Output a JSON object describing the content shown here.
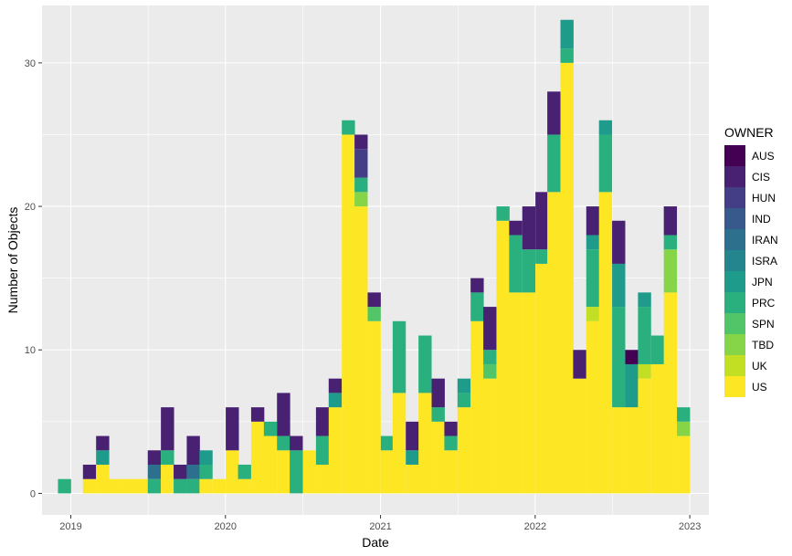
{
  "chart_data": {
    "type": "bar",
    "stacked": true,
    "xlabel": "Date",
    "ylabel": "Number of Objects",
    "x_ticks": [
      "2019",
      "2020",
      "2021",
      "2022",
      "2023"
    ],
    "y_ticks": [
      0,
      10,
      20,
      30
    ],
    "ylim": [
      -1.5,
      34
    ],
    "xlim": [
      "2018-10-25",
      "2023-02-15"
    ],
    "grid": true,
    "legend_position": "right",
    "legend_title": "OWNER",
    "owners": [
      "AUS",
      "CIS",
      "HUN",
      "IND",
      "IRAN",
      "ISRA",
      "JPN",
      "PRC",
      "SPN",
      "TBD",
      "UK",
      "US"
    ],
    "colors": {
      "AUS": "#440154",
      "CIS": "#482173",
      "HUN": "#433e85",
      "IND": "#38598c",
      "IRAN": "#2d708e",
      "ISRA": "#25858e",
      "JPN": "#1e9b8a",
      "PRC": "#2ab07f",
      "SPN": "#52c569",
      "TBD": "#86d549",
      "UK": "#c2df23",
      "US": "#fde725"
    },
    "panel_background": "#ebebeb",
    "grid_color": "#ffffff",
    "bins": [
      {
        "date": "2019-01-01",
        "counts": {
          "PRC": 1
        }
      },
      {
        "date": "2019-03-01",
        "counts": {
          "US": 1,
          "CIS": 1
        }
      },
      {
        "date": "2019-04-01",
        "counts": {
          "US": 2,
          "JPN": 1,
          "CIS": 1
        }
      },
      {
        "date": "2019-05-01",
        "counts": {
          "US": 1
        }
      },
      {
        "date": "2019-06-01",
        "counts": {
          "US": 1
        }
      },
      {
        "date": "2019-07-01",
        "counts": {
          "US": 1
        }
      },
      {
        "date": "2019-08-01",
        "counts": {
          "PRC": 1,
          "IRAN": 1,
          "CIS": 1
        }
      },
      {
        "date": "2019-09-01",
        "counts": {
          "US": 2,
          "PRC": 1,
          "CIS": 3
        }
      },
      {
        "date": "2019-10-01",
        "counts": {
          "PRC": 1,
          "CIS": 1
        }
      },
      {
        "date": "2019-11-01",
        "counts": {
          "PRC": 1,
          "IRAN": 1,
          "CIS": 2
        }
      },
      {
        "date": "2019-12-01",
        "counts": {
          "US": 1,
          "PRC": 1,
          "JPN": 1
        }
      },
      {
        "date": "2020-01-01",
        "counts": {
          "US": 1
        }
      },
      {
        "date": "2020-02-01",
        "counts": {
          "US": 3,
          "CIS": 3
        }
      },
      {
        "date": "2020-03-01",
        "counts": {
          "US": 1,
          "PRC": 1
        }
      },
      {
        "date": "2020-04-01",
        "counts": {
          "US": 5,
          "CIS": 1
        }
      },
      {
        "date": "2020-05-01",
        "counts": {
          "US": 4,
          "PRC": 1
        }
      },
      {
        "date": "2020-06-01",
        "counts": {
          "US": 3,
          "PRC": 1,
          "CIS": 3
        }
      },
      {
        "date": "2020-07-01",
        "counts": {
          "PRC": 3,
          "CIS": 1
        }
      },
      {
        "date": "2020-08-01",
        "counts": {
          "US": 3
        }
      },
      {
        "date": "2020-09-01",
        "counts": {
          "US": 2,
          "PRC": 2,
          "CIS": 2
        }
      },
      {
        "date": "2020-10-01",
        "counts": {
          "US": 6,
          "JPN": 1,
          "CIS": 1
        }
      },
      {
        "date": "2020-11-01",
        "counts": {
          "US": 25,
          "PRC": 1
        }
      },
      {
        "date": "2020-12-01",
        "counts": {
          "US": 20,
          "TBD": 1,
          "PRC": 1,
          "HUN": 2,
          "CIS": 1
        }
      },
      {
        "date": "2021-01-01",
        "counts": {
          "US": 12,
          "SPN": 1,
          "CIS": 1
        }
      },
      {
        "date": "2021-02-01",
        "counts": {
          "US": 3,
          "PRC": 1
        }
      },
      {
        "date": "2021-03-01",
        "counts": {
          "US": 7,
          "PRC": 5
        }
      },
      {
        "date": "2021-04-01",
        "counts": {
          "US": 2,
          "JPN": 1,
          "CIS": 2
        }
      },
      {
        "date": "2021-05-01",
        "counts": {
          "US": 7,
          "PRC": 4
        }
      },
      {
        "date": "2021-06-01",
        "counts": {
          "US": 5,
          "PRC": 1,
          "CIS": 2
        }
      },
      {
        "date": "2021-07-01",
        "counts": {
          "US": 3,
          "PRC": 1,
          "CIS": 1
        }
      },
      {
        "date": "2021-08-01",
        "counts": {
          "US": 6,
          "PRC": 1,
          "JPN": 1
        }
      },
      {
        "date": "2021-09-01",
        "counts": {
          "US": 12,
          "PRC": 2,
          "CIS": 1
        }
      },
      {
        "date": "2021-10-01",
        "counts": {
          "US": 8,
          "SPN": 1,
          "PRC": 1,
          "CIS": 3
        }
      },
      {
        "date": "2021-11-01",
        "counts": {
          "US": 19,
          "PRC": 1
        }
      },
      {
        "date": "2021-12-01",
        "counts": {
          "US": 14,
          "PRC": 4,
          "CIS": 1
        }
      },
      {
        "date": "2022-01-01",
        "counts": {
          "US": 14,
          "PRC": 3,
          "CIS": 3
        }
      },
      {
        "date": "2022-02-01",
        "counts": {
          "US": 16,
          "PRC": 1,
          "CIS": 4
        }
      },
      {
        "date": "2022-03-01",
        "counts": {
          "US": 21,
          "PRC": 4,
          "CIS": 3
        }
      },
      {
        "date": "2022-04-01",
        "counts": {
          "US": 30,
          "PRC": 1,
          "JPN": 2
        }
      },
      {
        "date": "2022-05-01",
        "counts": {
          "US": 8,
          "CIS": 2
        }
      },
      {
        "date": "2022-06-01",
        "counts": {
          "US": 12,
          "UK": 1,
          "PRC": 4,
          "JPN": 1,
          "CIS": 2
        }
      },
      {
        "date": "2022-07-01",
        "counts": {
          "US": 21,
          "PRC": 4,
          "JPN": 1
        }
      },
      {
        "date": "2022-08-01",
        "counts": {
          "US": 6,
          "JPN": 3,
          "PRC": 7,
          "CIS": 3
        }
      },
      {
        "date": "2022-09-01",
        "counts": {
          "US": 6,
          "JPN": 3,
          "AUS": 1
        }
      },
      {
        "date": "2022-10-01",
        "counts": {
          "US": 8,
          "UK": 1,
          "PRC": 4,
          "JPN": 1
        }
      },
      {
        "date": "2022-11-01",
        "counts": {
          "US": 9,
          "PRC": 2
        }
      },
      {
        "date": "2022-12-01",
        "counts": {
          "US": 14,
          "TBD": 3,
          "PRC": 1,
          "CIS": 2
        }
      },
      {
        "date": "2023-01-01",
        "counts": {
          "US": 4,
          "TBD": 1,
          "PRC": 1
        }
      }
    ]
  }
}
